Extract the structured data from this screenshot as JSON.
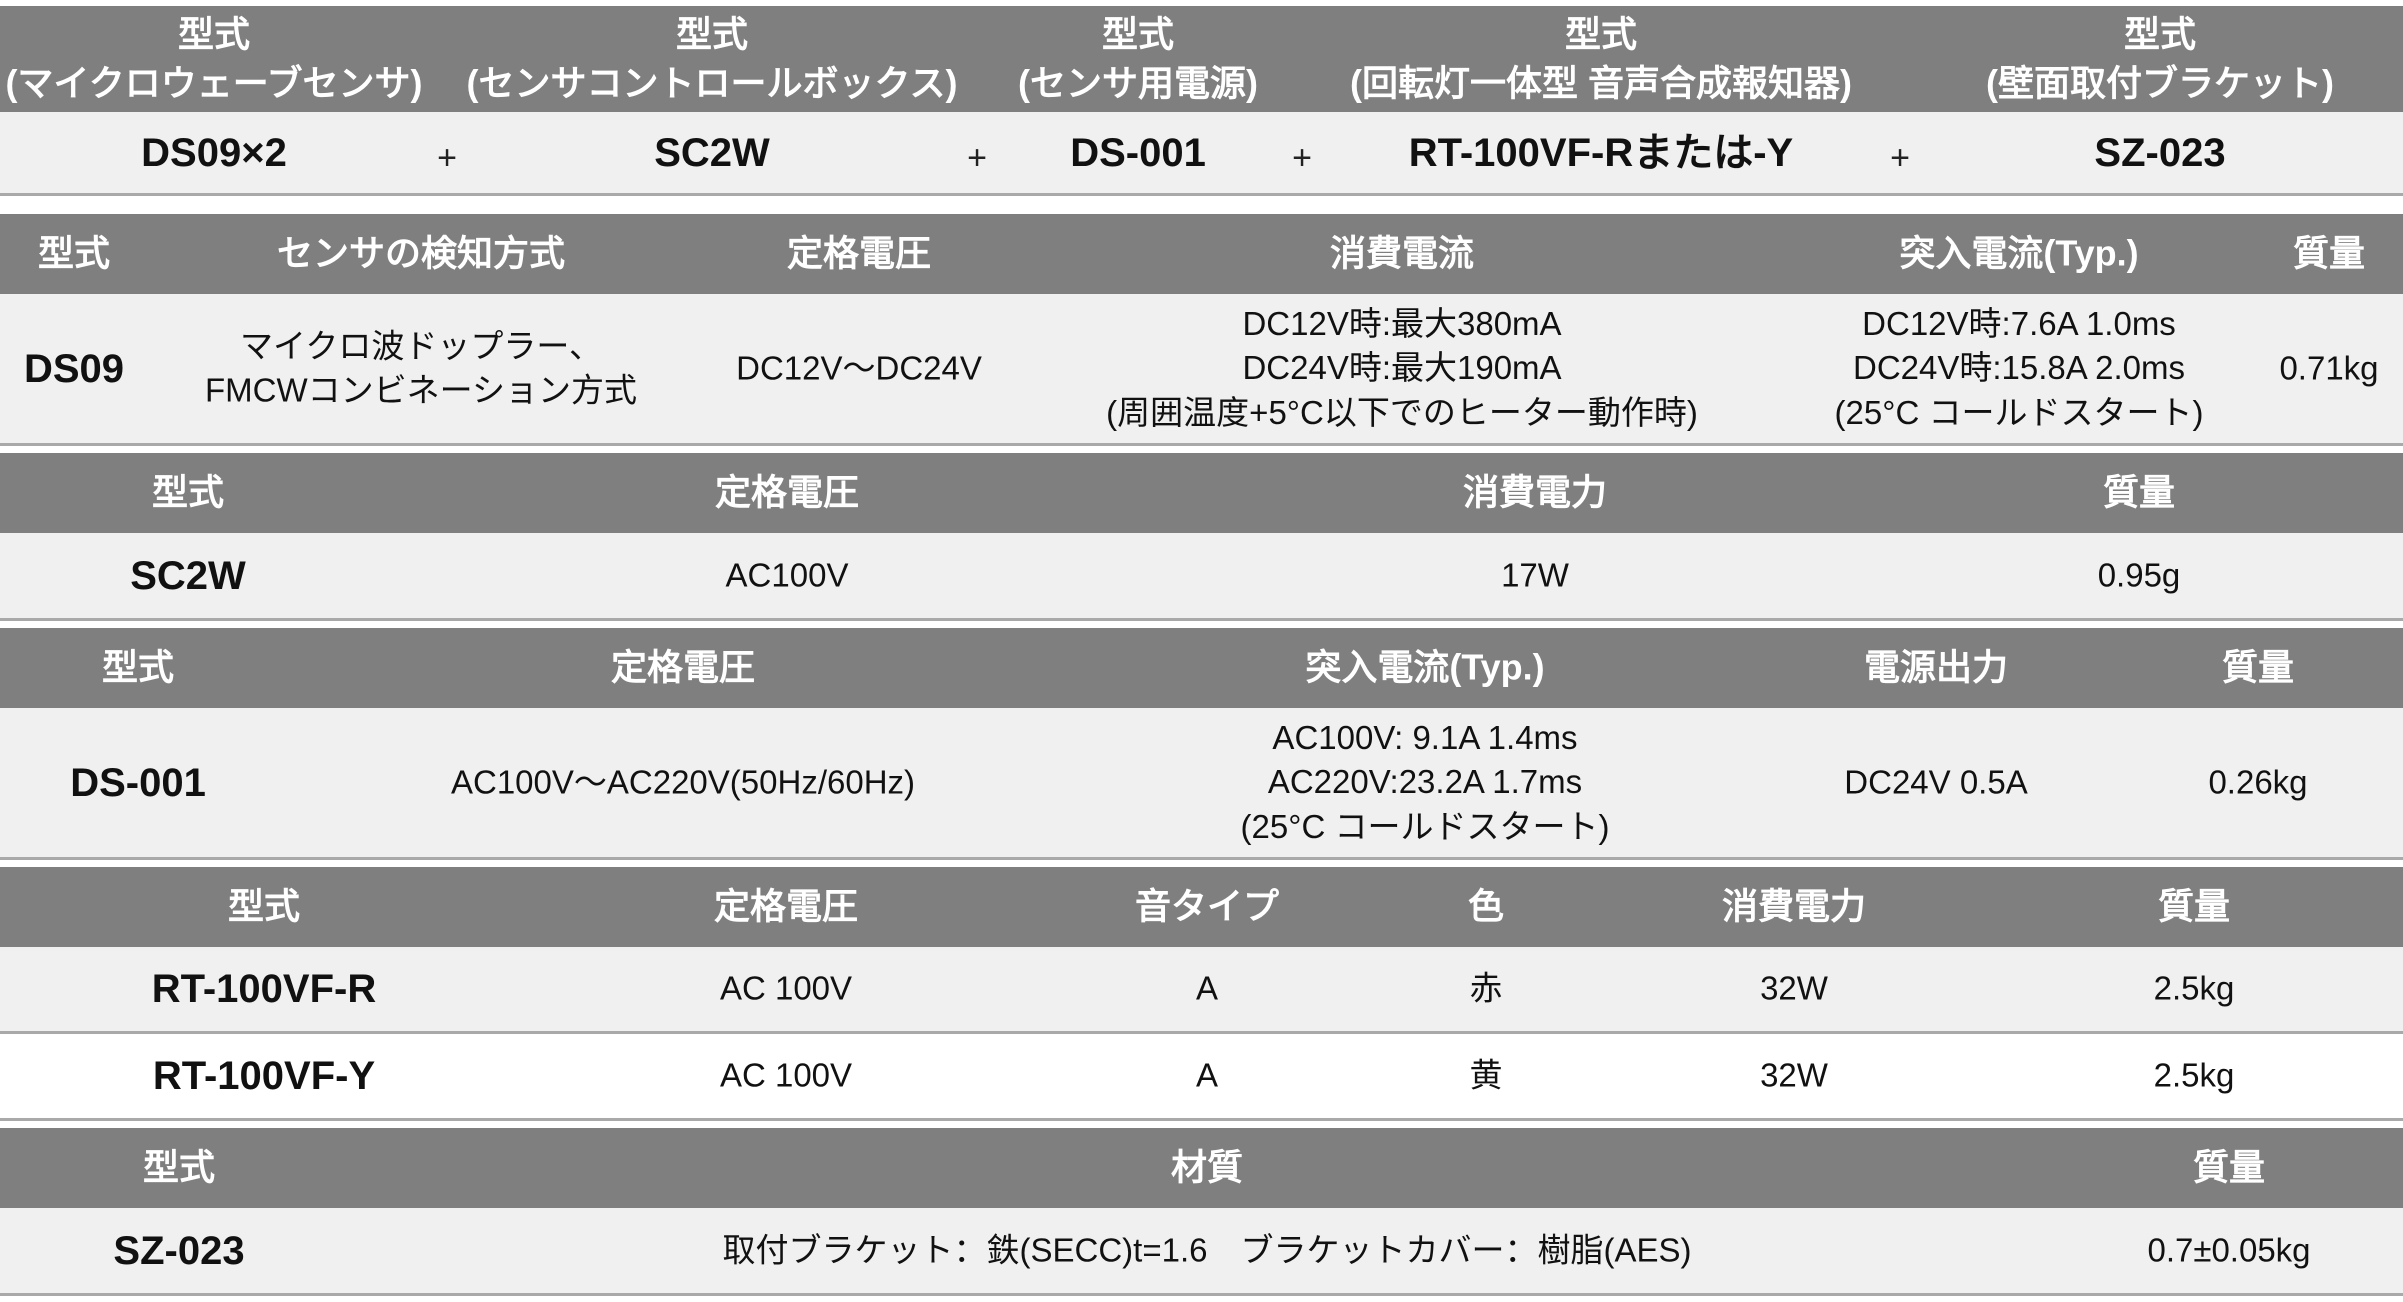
{
  "combo": {
    "headers": [
      {
        "top": "型式",
        "sub": "(マイクロウェーブセンサ)"
      },
      {
        "top": "型式",
        "sub": "(センサコントロールボックス)"
      },
      {
        "top": "型式",
        "sub": "(センサ用電源)"
      },
      {
        "top": "型式",
        "sub": "(回転灯一体型 音声合成報知器)"
      },
      {
        "top": "型式",
        "sub": "(壁面取付ブラケット)"
      }
    ],
    "values": [
      "DS09×2",
      "SC2W",
      "DS-001",
      "RT-100VF-Rまたは-Y",
      "SZ-023"
    ],
    "plus": "+"
  },
  "ds09": {
    "headers": [
      "型式",
      "センサの検知方式",
      "定格電圧",
      "消費電流",
      "突入電流(Typ.)",
      "質量"
    ],
    "model": "DS09",
    "method": [
      "マイクロ波ドップラー、",
      "FMCWコンビネーション方式"
    ],
    "voltage": "DC12V〜DC24V",
    "current": [
      "DC12V時:最大380mA",
      "DC24V時:最大190mA",
      "(周囲温度+5°C以下でのヒーター動作時)"
    ],
    "inrush": [
      "DC12V時:7.6A 1.0ms",
      "DC24V時:15.8A 2.0ms",
      "(25°C コールドスタート)"
    ],
    "mass": "0.71kg"
  },
  "sc2w": {
    "headers": [
      "型式",
      "定格電圧",
      "消費電力",
      "質量"
    ],
    "values": [
      "SC2W",
      "AC100V",
      "17W",
      "0.95g"
    ]
  },
  "ds001": {
    "headers": [
      "型式",
      "定格電圧",
      "突入電流(Typ.)",
      "電源出力",
      "質量"
    ],
    "model": "DS-001",
    "voltage": "AC100V〜AC220V(50Hz/60Hz)",
    "inrush": [
      "AC100V: 9.1A 1.4ms",
      "AC220V:23.2A 1.7ms",
      "(25°C コールドスタート)"
    ],
    "output": "DC24V 0.5A",
    "mass": "0.26kg"
  },
  "rt": {
    "headers": [
      "型式",
      "定格電圧",
      "音タイプ",
      "色",
      "消費電力",
      "質量"
    ],
    "rows": [
      [
        "RT-100VF-R",
        "AC 100V",
        "A",
        "赤",
        "32W",
        "2.5kg"
      ],
      [
        "RT-100VF-Y",
        "AC 100V",
        "A",
        "黄",
        "32W",
        "2.5kg"
      ]
    ]
  },
  "sz": {
    "headers": [
      "型式",
      "材質",
      "質量"
    ],
    "values": [
      "SZ-023",
      "取付ブラケット：鉄(SECC)t=1.6　ブラケットカバー：樹脂(AES)",
      "0.7±0.05kg"
    ]
  }
}
